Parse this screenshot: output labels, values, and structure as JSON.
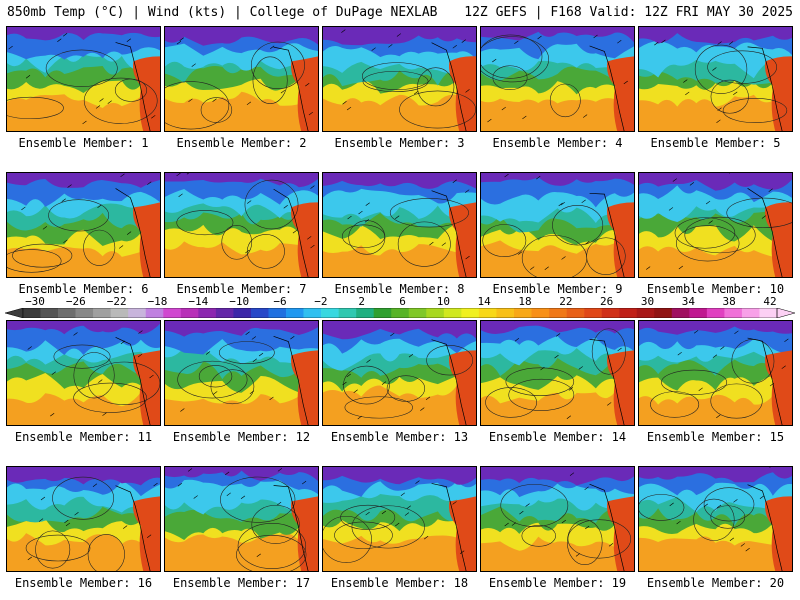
{
  "header": {
    "left_title": "850mb Temp (°C) | Wind (kts) | College of DuPage NEXLAB",
    "right_title": "12Z GEFS | F168 Valid: 12Z FRI MAY 30 2025"
  },
  "members": [
    "Ensemble Member: 1",
    "Ensemble Member: 2",
    "Ensemble Member: 3",
    "Ensemble Member: 4",
    "Ensemble Member: 5",
    "Ensemble Member: 6",
    "Ensemble Member: 7",
    "Ensemble Member: 8",
    "Ensemble Member: 9",
    "Ensemble Member: 10",
    "Ensemble Member: 11",
    "Ensemble Member: 12",
    "Ensemble Member: 13",
    "Ensemble Member: 14",
    "Ensemble Member: 15",
    "Ensemble Member: 16",
    "Ensemble Member: 17",
    "Ensemble Member: 18",
    "Ensemble Member: 19",
    "Ensemble Member: 20"
  ],
  "colorbar": {
    "ticks": [
      "−30",
      "−26",
      "−22",
      "−18",
      "−14",
      "−10",
      "−6",
      "−2",
      "2",
      "6",
      "10",
      "14",
      "18",
      "22",
      "26",
      "30",
      "34",
      "38",
      "42"
    ],
    "colors": [
      "#3c3c3c",
      "#555555",
      "#6e6e6e",
      "#888888",
      "#a0a0a0",
      "#b9b9b9",
      "#c8b4dc",
      "#c080e0",
      "#d048d0",
      "#b830b8",
      "#8c28b0",
      "#6428a8",
      "#3c28a8",
      "#2848c8",
      "#2070e0",
      "#2098f0",
      "#30c0f0",
      "#38d8e0",
      "#30c8b0",
      "#20b080",
      "#30a030",
      "#58b428",
      "#80c828",
      "#a8d820",
      "#d0e820",
      "#f0f020",
      "#f8d818",
      "#f8c018",
      "#f8a818",
      "#f89018",
      "#f07818",
      "#e86018",
      "#e04818",
      "#d03018",
      "#c02018",
      "#a81818",
      "#901414",
      "#a01060",
      "#c01890",
      "#e040c0",
      "#f070d8",
      "#f8a0e8",
      "#fcd0f4"
    ]
  },
  "field_colors": {
    "violet": "#6a2ab8",
    "blue": "#2b6fe0",
    "cyan": "#3cc8ec",
    "teal": "#2cb8a0",
    "green": "#4aa838",
    "yellow": "#f0e020",
    "orange": "#f4a020",
    "red": "#e04a18"
  }
}
